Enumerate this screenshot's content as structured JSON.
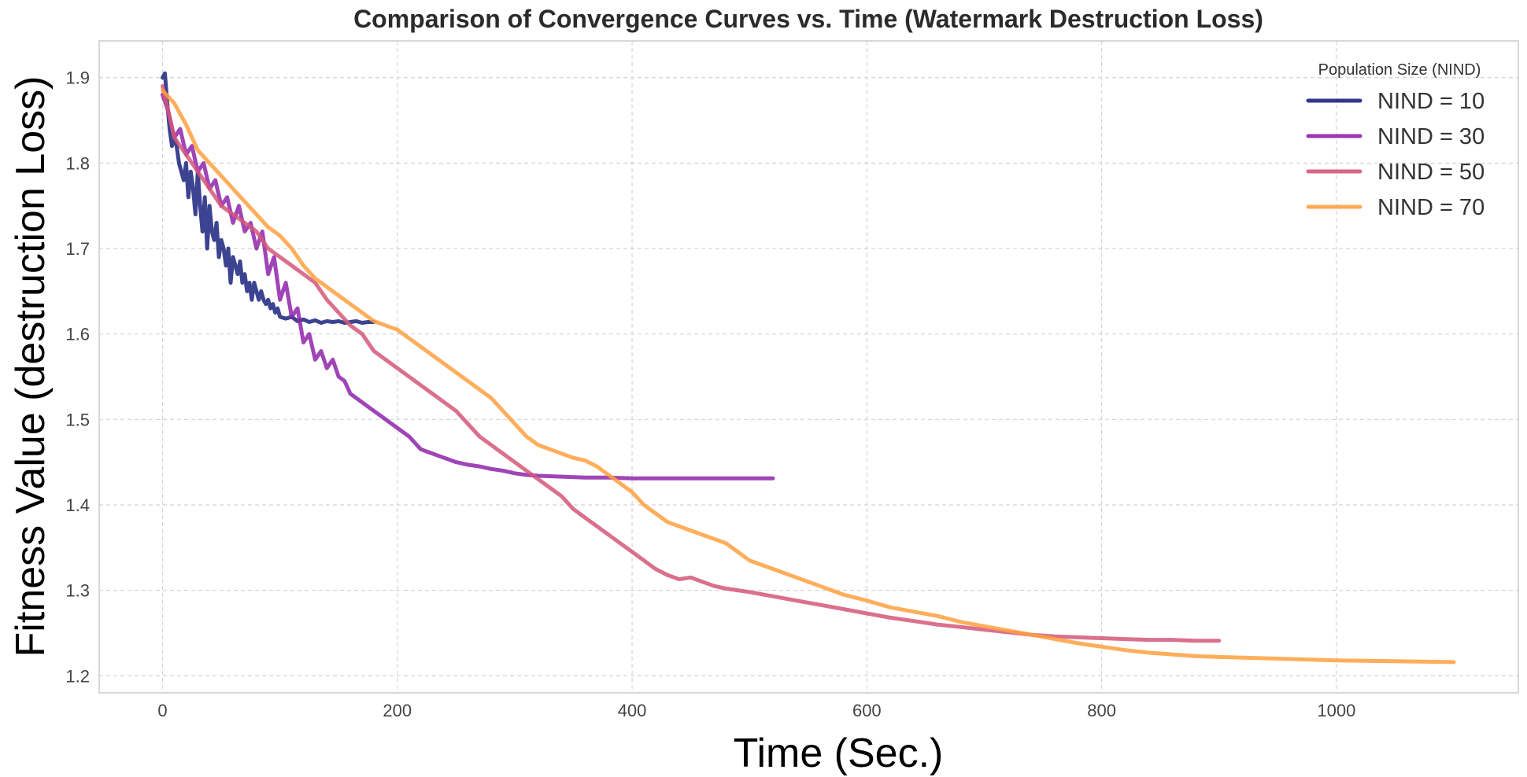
{
  "chart_data": {
    "type": "line",
    "title": "Comparison of Convergence Curves vs. Time (Watermark Destruction Loss)",
    "xlabel": "Time (Sec.)",
    "ylabel": "Fitness Value (destruction Loss)",
    "xlim": [
      -54,
      1155
    ],
    "ylim": [
      1.18,
      1.943
    ],
    "xticks": [
      0,
      200,
      400,
      600,
      800,
      1000
    ],
    "yticks": [
      1.2,
      1.3,
      1.4,
      1.5,
      1.6,
      1.7,
      1.8,
      1.9
    ],
    "grid": true,
    "legend": {
      "title": "Population Size (NIND)",
      "position": "top-right"
    },
    "series": [
      {
        "name": "NIND = 10",
        "color": "#1a237e",
        "x": [
          0,
          2,
          4,
          6,
          8,
          10,
          12,
          14,
          16,
          18,
          20,
          22,
          24,
          26,
          28,
          30,
          32,
          34,
          36,
          38,
          40,
          42,
          44,
          46,
          48,
          50,
          52,
          54,
          56,
          58,
          60,
          62,
          64,
          66,
          68,
          70,
          72,
          74,
          76,
          78,
          80,
          82,
          84,
          86,
          88,
          90,
          92,
          94,
          96,
          98,
          100,
          105,
          110,
          115,
          120,
          125,
          130,
          135,
          140,
          145,
          150,
          155,
          160,
          165,
          170,
          175,
          180
        ],
        "y": [
          1.9,
          1.905,
          1.87,
          1.84,
          1.82,
          1.83,
          1.82,
          1.8,
          1.79,
          1.78,
          1.8,
          1.76,
          1.79,
          1.77,
          1.74,
          1.79,
          1.75,
          1.72,
          1.76,
          1.7,
          1.75,
          1.72,
          1.71,
          1.73,
          1.69,
          1.71,
          1.7,
          1.68,
          1.7,
          1.66,
          1.69,
          1.68,
          1.67,
          1.685,
          1.66,
          1.67,
          1.65,
          1.66,
          1.64,
          1.66,
          1.65,
          1.64,
          1.65,
          1.64,
          1.635,
          1.64,
          1.63,
          1.635,
          1.625,
          1.63,
          1.62,
          1.618,
          1.62,
          1.615,
          1.617,
          1.614,
          1.616,
          1.613,
          1.615,
          1.614,
          1.615,
          1.613,
          1.614,
          1.615,
          1.613,
          1.614,
          1.614
        ]
      },
      {
        "name": "NIND = 30",
        "color": "#8e24aa",
        "x": [
          0,
          5,
          10,
          15,
          20,
          25,
          30,
          35,
          40,
          45,
          50,
          55,
          60,
          65,
          70,
          75,
          80,
          85,
          90,
          95,
          100,
          105,
          110,
          115,
          120,
          125,
          130,
          135,
          140,
          145,
          150,
          155,
          160,
          170,
          180,
          190,
          200,
          210,
          220,
          230,
          240,
          250,
          260,
          270,
          280,
          290,
          300,
          310,
          320,
          340,
          360,
          380,
          400,
          420,
          440,
          460,
          480,
          500,
          520
        ],
        "y": [
          1.88,
          1.86,
          1.83,
          1.84,
          1.81,
          1.82,
          1.79,
          1.8,
          1.77,
          1.78,
          1.75,
          1.76,
          1.73,
          1.75,
          1.72,
          1.73,
          1.7,
          1.72,
          1.67,
          1.69,
          1.64,
          1.66,
          1.62,
          1.63,
          1.59,
          1.6,
          1.57,
          1.58,
          1.56,
          1.57,
          1.55,
          1.545,
          1.53,
          1.52,
          1.51,
          1.5,
          1.49,
          1.48,
          1.465,
          1.46,
          1.455,
          1.45,
          1.447,
          1.445,
          1.442,
          1.44,
          1.437,
          1.435,
          1.434,
          1.433,
          1.432,
          1.432,
          1.431,
          1.431,
          1.431,
          1.431,
          1.431,
          1.431,
          1.431
        ]
      },
      {
        "name": "NIND = 50",
        "color": "#d4577a",
        "x": [
          0,
          10,
          20,
          30,
          40,
          50,
          60,
          70,
          80,
          90,
          100,
          110,
          120,
          130,
          140,
          150,
          160,
          170,
          180,
          190,
          200,
          210,
          220,
          230,
          240,
          250,
          260,
          270,
          280,
          290,
          300,
          310,
          320,
          330,
          340,
          350,
          360,
          370,
          380,
          390,
          400,
          410,
          420,
          430,
          440,
          450,
          460,
          470,
          480,
          490,
          500,
          520,
          540,
          560,
          580,
          600,
          620,
          640,
          660,
          680,
          700,
          720,
          740,
          760,
          780,
          800,
          820,
          840,
          860,
          880,
          900
        ],
        "y": [
          1.89,
          1.83,
          1.81,
          1.79,
          1.77,
          1.75,
          1.74,
          1.73,
          1.72,
          1.7,
          1.69,
          1.68,
          1.67,
          1.66,
          1.64,
          1.625,
          1.61,
          1.6,
          1.58,
          1.57,
          1.56,
          1.55,
          1.54,
          1.53,
          1.52,
          1.51,
          1.495,
          1.48,
          1.47,
          1.46,
          1.45,
          1.44,
          1.43,
          1.42,
          1.41,
          1.395,
          1.385,
          1.375,
          1.365,
          1.355,
          1.345,
          1.335,
          1.325,
          1.318,
          1.313,
          1.315,
          1.31,
          1.305,
          1.302,
          1.3,
          1.298,
          1.293,
          1.288,
          1.283,
          1.278,
          1.273,
          1.268,
          1.264,
          1.26,
          1.257,
          1.254,
          1.251,
          1.248,
          1.246,
          1.245,
          1.244,
          1.243,
          1.242,
          1.242,
          1.241,
          1.241
        ]
      },
      {
        "name": "NIND = 70",
        "color": "#ffa040",
        "x": [
          0,
          10,
          20,
          30,
          40,
          50,
          60,
          70,
          80,
          90,
          100,
          110,
          120,
          130,
          140,
          150,
          160,
          170,
          180,
          190,
          200,
          210,
          220,
          230,
          240,
          250,
          260,
          270,
          280,
          290,
          300,
          310,
          320,
          330,
          340,
          350,
          360,
          370,
          380,
          390,
          400,
          410,
          420,
          430,
          440,
          450,
          460,
          470,
          480,
          490,
          500,
          520,
          540,
          560,
          580,
          600,
          620,
          640,
          660,
          680,
          700,
          720,
          740,
          760,
          780,
          800,
          820,
          840,
          860,
          880,
          900,
          950,
          1000,
          1050,
          1100
        ],
        "y": [
          1.885,
          1.87,
          1.845,
          1.815,
          1.8,
          1.785,
          1.77,
          1.755,
          1.74,
          1.725,
          1.715,
          1.7,
          1.68,
          1.665,
          1.655,
          1.645,
          1.635,
          1.625,
          1.615,
          1.61,
          1.605,
          1.595,
          1.585,
          1.575,
          1.565,
          1.555,
          1.545,
          1.535,
          1.525,
          1.51,
          1.495,
          1.48,
          1.47,
          1.465,
          1.46,
          1.455,
          1.452,
          1.445,
          1.435,
          1.425,
          1.415,
          1.4,
          1.39,
          1.38,
          1.375,
          1.37,
          1.365,
          1.36,
          1.355,
          1.345,
          1.335,
          1.325,
          1.315,
          1.305,
          1.295,
          1.288,
          1.28,
          1.275,
          1.27,
          1.263,
          1.258,
          1.253,
          1.248,
          1.243,
          1.238,
          1.234,
          1.23,
          1.227,
          1.225,
          1.223,
          1.222,
          1.22,
          1.218,
          1.217,
          1.216
        ]
      }
    ]
  }
}
